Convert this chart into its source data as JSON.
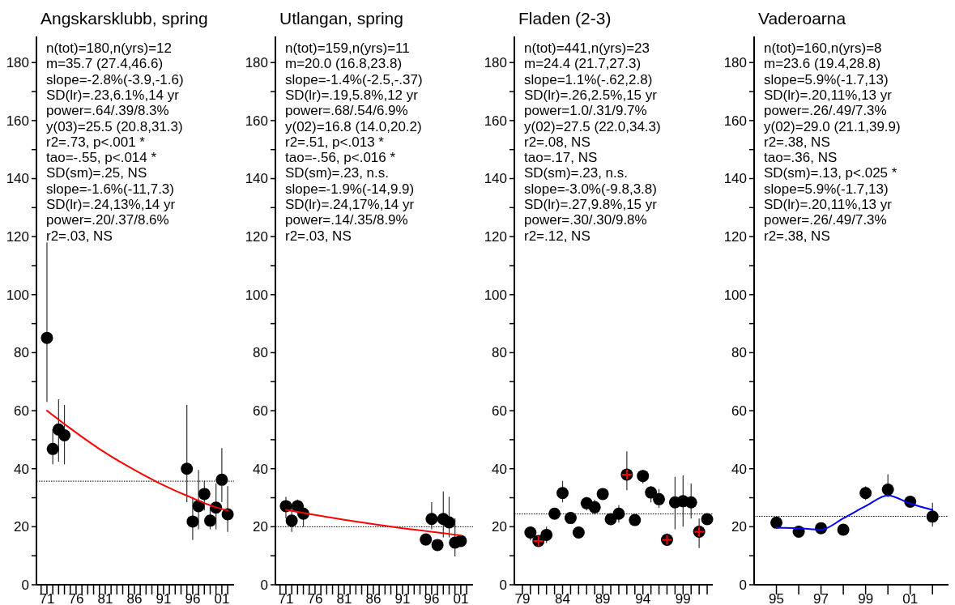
{
  "chart_data": [
    {
      "type": "scatter",
      "title": "Angskarsklubb, spring",
      "grid": false,
      "xlim": [
        1969.2,
        2003.1
      ],
      "ylim": [
        0,
        189
      ],
      "xticks": [
        {
          "value": 1970,
          "label": null
        },
        {
          "value": 1971,
          "label": "71"
        },
        {
          "value": 1972,
          "label": null
        },
        {
          "value": 1973,
          "label": null
        },
        {
          "value": 1974,
          "label": null
        },
        {
          "value": 1975,
          "label": null
        },
        {
          "value": 1976,
          "label": "76"
        },
        {
          "value": 1977,
          "label": null
        },
        {
          "value": 1978,
          "label": null
        },
        {
          "value": 1979,
          "label": null
        },
        {
          "value": 1980,
          "label": null
        },
        {
          "value": 1981,
          "label": "81"
        },
        {
          "value": 1982,
          "label": null
        },
        {
          "value": 1983,
          "label": null
        },
        {
          "value": 1984,
          "label": null
        },
        {
          "value": 1985,
          "label": null
        },
        {
          "value": 1986,
          "label": "86"
        },
        {
          "value": 1987,
          "label": null
        },
        {
          "value": 1988,
          "label": null
        },
        {
          "value": 1989,
          "label": null
        },
        {
          "value": 1990,
          "label": null
        },
        {
          "value": 1991,
          "label": "91"
        },
        {
          "value": 1992,
          "label": null
        },
        {
          "value": 1993,
          "label": null
        },
        {
          "value": 1994,
          "label": null
        },
        {
          "value": 1995,
          "label": null
        },
        {
          "value": 1996,
          "label": "96"
        },
        {
          "value": 1997,
          "label": null
        },
        {
          "value": 1998,
          "label": null
        },
        {
          "value": 1999,
          "label": null
        },
        {
          "value": 2000,
          "label": null
        },
        {
          "value": 2001,
          "label": "01"
        },
        {
          "value": 2002,
          "label": null
        }
      ],
      "yticks": [
        0,
        {
          "value": 10,
          "label": null
        },
        20,
        {
          "value": 30,
          "label": null
        },
        40,
        {
          "value": 50,
          "label": null
        },
        60,
        {
          "value": 70,
          "label": null
        },
        80,
        {
          "value": 90,
          "label": null
        },
        100,
        {
          "value": 110,
          "label": null
        },
        120,
        {
          "value": 130,
          "label": null
        },
        140,
        {
          "value": 150,
          "label": null
        },
        160,
        {
          "value": 170,
          "label": null
        },
        180
      ],
      "annotations": [
        "n(tot)=180,n(yrs)=12",
        "m=35.7 (27.4,46.6)",
        "slope=-2.8%(-3.9,-1.6)",
        "SD(lr)=.23,6.1%,14 yr",
        "power=.64/.39/8.3%",
        "y(03)=25.5 (20.8,31.3)",
        "r2=.73, p<.001 *",
        "tao=-.55, p<.014 *",
        "SD(sm)=.25, NS",
        "slope=-1.6%(-11,7.3)",
        "SD(lr)=.24,13%,14 yr",
        "power=.20/.37/8.6%",
        "r2=.03, NS"
      ],
      "ref_lines": [
        {
          "axis": "y",
          "value": 35.7,
          "label": null,
          "color": "#000000",
          "line_style": "dotted"
        }
      ],
      "series": [
        {
          "color": "#000000",
          "marker": "circle",
          "x": [
            1971,
            1972,
            1973,
            1974,
            1995,
            1996,
            1997,
            1998,
            1999,
            2000,
            2001,
            2002
          ],
          "values": [
            85.1,
            46.8,
            53.5,
            51.5,
            40.0,
            21.8,
            27.1,
            31.3,
            22.1,
            26.6,
            36.2,
            24.3
          ],
          "errors": [
            [
              63,
              118
            ],
            [
              41.5,
              53.6
            ],
            [
              42.4,
              63.9
            ],
            [
              41.5,
              62
            ],
            [
              28.5,
              62
            ],
            [
              15.4,
              30.3
            ],
            [
              19.1,
              39.6
            ],
            [
              25.6,
              35.9
            ],
            [
              19.1,
              26.6
            ],
            [
              19.1,
              35
            ],
            [
              28.5,
              47.1
            ],
            [
              18.2,
              34
            ]
          ]
        },
        {
          "type": "line",
          "color": "#ff0000",
          "marker": "none",
          "line_style": "solid",
          "x": [
            1971,
            1975,
            1980,
            1985,
            1990,
            1995,
            2000,
            2002
          ],
          "values": [
            60,
            53.9,
            46.8,
            40.7,
            35.3,
            30.7,
            26.7,
            25.6
          ]
        }
      ]
    },
    {
      "type": "scatter",
      "title": "Utlangan, spring",
      "grid": false,
      "xlim": [
        1969.2,
        2003.1
      ],
      "ylim": [
        0,
        189
      ],
      "xticks": [
        {
          "value": 1970,
          "label": null
        },
        {
          "value": 1971,
          "label": "71"
        },
        {
          "value": 1972,
          "label": null
        },
        {
          "value": 1973,
          "label": null
        },
        {
          "value": 1974,
          "label": null
        },
        {
          "value": 1975,
          "label": null
        },
        {
          "value": 1976,
          "label": "76"
        },
        {
          "value": 1977,
          "label": null
        },
        {
          "value": 1978,
          "label": null
        },
        {
          "value": 1979,
          "label": null
        },
        {
          "value": 1980,
          "label": null
        },
        {
          "value": 1981,
          "label": "81"
        },
        {
          "value": 1982,
          "label": null
        },
        {
          "value": 1983,
          "label": null
        },
        {
          "value": 1984,
          "label": null
        },
        {
          "value": 1985,
          "label": null
        },
        {
          "value": 1986,
          "label": "86"
        },
        {
          "value": 1987,
          "label": null
        },
        {
          "value": 1988,
          "label": null
        },
        {
          "value": 1989,
          "label": null
        },
        {
          "value": 1990,
          "label": null
        },
        {
          "value": 1991,
          "label": "91"
        },
        {
          "value": 1992,
          "label": null
        },
        {
          "value": 1993,
          "label": null
        },
        {
          "value": 1994,
          "label": null
        },
        {
          "value": 1995,
          "label": null
        },
        {
          "value": 1996,
          "label": "96"
        },
        {
          "value": 1997,
          "label": null
        },
        {
          "value": 1998,
          "label": null
        },
        {
          "value": 1999,
          "label": null
        },
        {
          "value": 2000,
          "label": null
        },
        {
          "value": 2001,
          "label": "01"
        },
        {
          "value": 2002,
          "label": null
        }
      ],
      "yticks": [
        0,
        {
          "value": 10,
          "label": null
        },
        20,
        {
          "value": 30,
          "label": null
        },
        40,
        {
          "value": 50,
          "label": null
        },
        60,
        {
          "value": 70,
          "label": null
        },
        80,
        {
          "value": 90,
          "label": null
        },
        100,
        {
          "value": 110,
          "label": null
        },
        120,
        {
          "value": 130,
          "label": null
        },
        140,
        {
          "value": 150,
          "label": null
        },
        160,
        {
          "value": 170,
          "label": null
        },
        180
      ],
      "annotations": [
        "n(tot)=159,n(yrs)=11",
        "m=20.0 (16.8,23.8)",
        "slope=-1.4%(-2.5,-.37)",
        "SD(lr)=.19,5.8%,12 yr",
        "power=.68/.54/6.9%",
        "y(02)=16.8 (14.0,20.2)",
        "r2=.51, p<.013 *",
        "tao=-.56, p<.016 *",
        "SD(sm)=.23, n.s.",
        "slope=-1.9%(-14,9.9)",
        "SD(lr)=.24,17%,14 yr",
        "power=.14/.35/8.9%",
        "r2=.03, NS"
      ],
      "ref_lines": [
        {
          "axis": "y",
          "value": 20.0,
          "label": null,
          "color": "#000000",
          "line_style": "dotted"
        }
      ],
      "series": [
        {
          "color": "#000000",
          "marker": "circle",
          "x": [
            1971,
            1972,
            1973,
            1974,
            1995,
            1996,
            1997,
            1998,
            1999,
            2000,
            2001
          ],
          "values": [
            27.1,
            22.1,
            27.1,
            24.5,
            15.6,
            22.7,
            13.7,
            22.7,
            21.5,
            14.5,
            15.1
          ],
          "errors": [
            [
              22.9,
              30.3
            ],
            [
              18.2,
              26.6
            ],
            [
              24.7,
              29.4
            ],
            [
              20,
              27.5
            ],
            [
              13.5,
              17.3
            ],
            [
              19.1,
              28.5
            ],
            [
              11.7,
              15.4
            ],
            [
              16.3,
              32.2
            ],
            [
              16.3,
              30.3
            ],
            [
              9.8,
              22.9
            ],
            [
              13.5,
              16.3
            ]
          ]
        },
        {
          "type": "line",
          "color": "#ff0000",
          "marker": "none",
          "line_style": "solid",
          "x": [
            1971,
            1981,
            1991,
            2001
          ],
          "values": [
            25.8,
            22.4,
            19.5,
            17.0
          ]
        }
      ]
    },
    {
      "type": "scatter",
      "title": "Fladen (2-3)",
      "grid": false,
      "xlim": [
        1978.0,
        2002.7
      ],
      "ylim": [
        0,
        189
      ],
      "xticks": [
        {
          "value": 1979,
          "label": "79"
        },
        {
          "value": 1980,
          "label": null
        },
        {
          "value": 1981,
          "label": null
        },
        {
          "value": 1982,
          "label": null
        },
        {
          "value": 1983,
          "label": null
        },
        {
          "value": 1984,
          "label": "84"
        },
        {
          "value": 1985,
          "label": null
        },
        {
          "value": 1986,
          "label": null
        },
        {
          "value": 1987,
          "label": null
        },
        {
          "value": 1988,
          "label": null
        },
        {
          "value": 1989,
          "label": "89"
        },
        {
          "value": 1990,
          "label": null
        },
        {
          "value": 1991,
          "label": null
        },
        {
          "value": 1992,
          "label": null
        },
        {
          "value": 1993,
          "label": null
        },
        {
          "value": 1994,
          "label": "94"
        },
        {
          "value": 1995,
          "label": null
        },
        {
          "value": 1996,
          "label": null
        },
        {
          "value": 1997,
          "label": null
        },
        {
          "value": 1998,
          "label": null
        },
        {
          "value": 1999,
          "label": "99"
        },
        {
          "value": 2000,
          "label": null
        },
        {
          "value": 2001,
          "label": null
        },
        {
          "value": 2002,
          "label": null
        }
      ],
      "yticks": [
        0,
        {
          "value": 10,
          "label": null
        },
        20,
        {
          "value": 30,
          "label": null
        },
        40,
        {
          "value": 50,
          "label": null
        },
        60,
        {
          "value": 70,
          "label": null
        },
        80,
        {
          "value": 90,
          "label": null
        },
        100,
        {
          "value": 110,
          "label": null
        },
        120,
        {
          "value": 130,
          "label": null
        },
        140,
        {
          "value": 150,
          "label": null
        },
        160,
        {
          "value": 170,
          "label": null
        },
        180
      ],
      "annotations": [
        "n(tot)=441,n(yrs)=23",
        "m=24.4 (21.7,27.3)",
        "slope=1.1%(-.62,2.8)",
        "SD(lr)=.26,2.5%,15 yr",
        "power=1.0/.31/9.7%",
        "y(02)=27.5 (22.0,34.3)",
        "r2=.08, NS",
        "tao=.17, NS",
        "SD(sm)=.23, n.s.",
        "slope=-3.0%(-9.8,3.8)",
        "SD(lr)=.27,9.8%,15 yr",
        "power=.30/.30/9.8%",
        "r2=.12, NS"
      ],
      "ref_lines": [
        {
          "axis": "y",
          "value": 24.4,
          "label": null,
          "color": "#000000",
          "line_style": "dotted"
        }
      ],
      "series": [
        {
          "color": "#000000",
          "marker": "circle",
          "x": [
            1980,
            1981,
            1982,
            1983,
            1984,
            1985,
            1986,
            1987,
            1988,
            1989,
            1990,
            1991,
            1992,
            1993,
            1994,
            1995,
            1996,
            1997,
            1998,
            1999,
            2000,
            2001,
            2002
          ],
          "values": [
            18.0,
            15.1,
            17.2,
            24.5,
            31.6,
            23.0,
            18.0,
            28.1,
            26.7,
            31.3,
            22.6,
            24.5,
            38.0,
            22.3,
            37.5,
            31.8,
            29.5,
            15.5,
            28.4,
            28.8,
            28.4,
            18.3,
            22.6
          ],
          "errors": [
            [
              15.3,
              19.1
            ],
            [
              13.5,
              16.3
            ],
            [
              14.4,
              20
            ],
            [
              22.8,
              26
            ],
            [
              28.4,
              35.8
            ],
            [
              21.4,
              24.7
            ],
            [
              16.3,
              20
            ],
            [
              25.6,
              30.2
            ],
            [
              24.2,
              29.3
            ],
            [
              29.8,
              33
            ],
            [
              20.5,
              24.2
            ],
            [
              21.4,
              27.4
            ],
            [
              32.6,
              46
            ],
            [
              20.9,
              23.7
            ],
            [
              34.9,
              39.5
            ],
            [
              28.4,
              34
            ],
            [
              26.5,
              33
            ],
            [
              13.5,
              17.7
            ],
            [
              19.1,
              37.2
            ],
            [
              20,
              37.7
            ],
            [
              22.8,
              34.9
            ],
            [
              12.6,
              22.8
            ],
            [
              20.9,
              24.2
            ]
          ]
        },
        {
          "color": "#ff0000",
          "marker": "cross",
          "x": [
            1981,
            1992,
            1997,
            2001
          ],
          "values": [
            15.1,
            38.0,
            15.5,
            18.3
          ]
        }
      ]
    },
    {
      "type": "scatter",
      "title": "Vaderoarna",
      "grid": false,
      "xlim": [
        1994.0,
        2002.9
      ],
      "ylim": [
        0,
        189
      ],
      "xticks": [
        {
          "value": 1995,
          "label": "95"
        },
        {
          "value": 1996,
          "label": null
        },
        {
          "value": 1997,
          "label": "97"
        },
        {
          "value": 1998,
          "label": null
        },
        {
          "value": 1999,
          "label": "99"
        },
        {
          "value": 2000,
          "label": null
        },
        {
          "value": 2001,
          "label": "01"
        },
        {
          "value": 2002,
          "label": null
        }
      ],
      "yticks": [
        0,
        {
          "value": 10,
          "label": null
        },
        20,
        {
          "value": 30,
          "label": null
        },
        40,
        {
          "value": 50,
          "label": null
        },
        60,
        {
          "value": 70,
          "label": null
        },
        80,
        {
          "value": 90,
          "label": null
        },
        100,
        {
          "value": 110,
          "label": null
        },
        120,
        {
          "value": 130,
          "label": null
        },
        140,
        {
          "value": 150,
          "label": null
        },
        160,
        {
          "value": 170,
          "label": null
        },
        180
      ],
      "annotations": [
        "n(tot)=160,n(yrs)=8",
        "m=23.6 (19.4,28.8)",
        "slope=5.9%(-1.7,13)",
        "SD(lr)=.20,11%,13 yr",
        "power=.26/.49/7.3%",
        "y(02)=29.0 (21.1,39.9)",
        "r2=.38, NS",
        "tao=.36, NS",
        "SD(sm)=.13, p<.025 *",
        "slope=5.9%(-1.7,13)",
        "SD(lr)=.20,11%,13 yr",
        "power=.26/.49/7.3%",
        "r2=.38, NS"
      ],
      "ref_lines": [
        {
          "axis": "y",
          "value": 23.6,
          "label": null,
          "color": "#000000",
          "line_style": "dotted"
        }
      ],
      "series": [
        {
          "color": "#000000",
          "marker": "circle",
          "x": [
            1995,
            1996,
            1997,
            1998,
            1999,
            2000,
            2001,
            2002
          ],
          "values": [
            21.4,
            18.3,
            19.5,
            19.0,
            31.6,
            32.8,
            28.6,
            23.5
          ],
          "errors": [
            [
              20,
              22.7
            ],
            [
              16.7,
              20
            ],
            [
              17.6,
              21.4
            ],
            [
              17.6,
              20.4
            ],
            [
              29.2,
              33.9
            ],
            [
              30.2,
              38.1
            ],
            [
              27.4,
              30.2
            ],
            [
              20,
              28.3
            ]
          ]
        },
        {
          "type": "line",
          "color": "#0000ff",
          "marker": "none",
          "line_style": "solid",
          "x": [
            1995,
            1996,
            1997,
            1998,
            1999,
            2000,
            2001,
            2002
          ],
          "values": [
            19.7,
            19.5,
            19.0,
            22.9,
            27.1,
            30.8,
            28.0,
            25.8
          ]
        }
      ]
    }
  ]
}
